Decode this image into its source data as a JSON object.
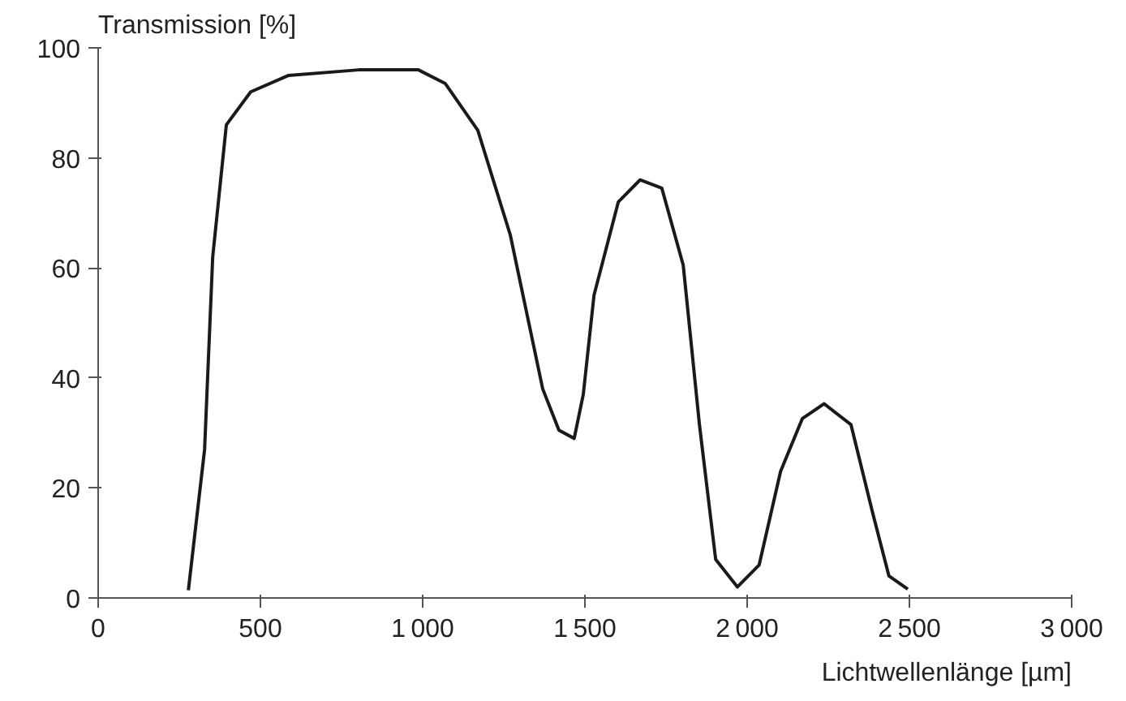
{
  "chart_data": {
    "type": "line",
    "xlabel": "Lichtwellenlänge [µm]",
    "ylabel": "Transmission [%]",
    "x": [
      278,
      328,
      353,
      395,
      470,
      587,
      803,
      987,
      1070,
      1170,
      1270,
      1370,
      1420,
      1467,
      1495,
      1528,
      1603,
      1670,
      1737,
      1803,
      1853,
      1903,
      1970,
      2037,
      2103,
      2170,
      2237,
      2320,
      2387,
      2437,
      2495
    ],
    "series": [
      {
        "color": "#1a1a1a",
        "values": [
          1.4,
          27,
          62,
          86,
          92,
          95,
          96,
          96,
          93.5,
          85,
          66,
          38,
          30.5,
          29,
          37,
          55,
          72,
          76,
          74.5,
          60.5,
          31.5,
          7,
          2,
          6,
          23,
          32.6,
          35.3,
          31.5,
          15.4,
          4,
          1.6
        ]
      }
    ],
    "xlim": [
      0,
      3000
    ],
    "ylim": [
      0,
      100
    ],
    "xticks": [
      0,
      500,
      1000,
      1500,
      2000,
      2500,
      3000
    ],
    "yticks": [
      0,
      20,
      40,
      60,
      80,
      100
    ],
    "grid": false,
    "marker": "none",
    "line_style": "solid"
  }
}
